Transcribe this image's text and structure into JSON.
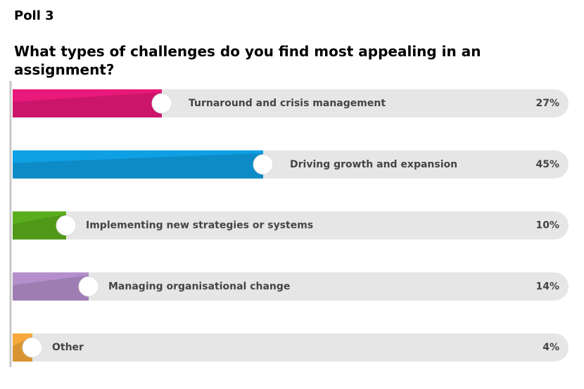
{
  "chart_data": {
    "type": "bar",
    "orientation": "horizontal",
    "title": "Poll 3",
    "subtitle": "What types of challenges do you find most appealing in an assignment?",
    "categories": [
      "Turnaround and crisis management",
      "Driving growth and expansion",
      "Implementing new strategies or systems",
      "Managing organisational change",
      "Other"
    ],
    "values": [
      27,
      45,
      10,
      14,
      4
    ],
    "value_labels": [
      "27%",
      "45%",
      "10%",
      "14%",
      "4%"
    ],
    "colors": [
      "#e8197a",
      "#0f9fe3",
      "#5aad1c",
      "#b48fcc",
      "#f6a93a"
    ]
  }
}
